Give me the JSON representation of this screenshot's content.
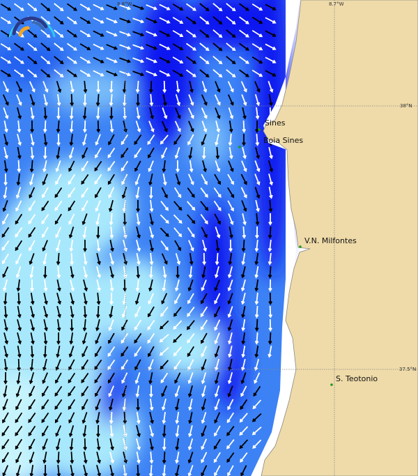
{
  "map": {
    "grid_labels": {
      "lon_left": "8.8°W",
      "lon_right": "8.7°W",
      "lat_top": "38°N",
      "lat_bottom": "37.5°N"
    },
    "places": [
      {
        "name": "Sines"
      },
      {
        "name": "Boia Sines"
      },
      {
        "name": "V.N. Milfontes"
      },
      {
        "name": "S. Teotonio"
      }
    ],
    "colors": {
      "land": "#efdba9",
      "ocean_dark": "#0a14f0",
      "ocean_mid": "#3c82f5",
      "ocean_light": "#78bcfa",
      "ocean_pale": "#a8e8fc",
      "place_marker": "#1a9a1a"
    },
    "logo_icon": "wave-gauge-icon",
    "legend": "direction arrows"
  }
}
